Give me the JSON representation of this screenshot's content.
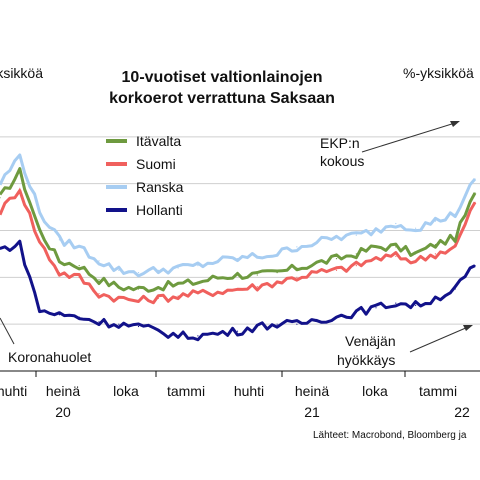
{
  "chart_data": {
    "type": "line",
    "title_lines": [
      "10-vuotiset valtionlainojen",
      "korkoerot verrattuna Saksaan"
    ],
    "unit_left": "%-yksikköä",
    "unit_right": "%-yksikköä",
    "x_tick_labels": [
      "huhti",
      "heinä",
      "loka",
      "tammi",
      "huhti",
      "heinä",
      "loka",
      "tammi"
    ],
    "x_year_labels": [
      "20",
      "21",
      "22"
    ],
    "ylim": [
      0.0,
      1.2
    ],
    "gridlines_y": [
      0.2,
      0.4,
      0.6,
      0.8,
      1.0
    ],
    "x": [
      "2020-03",
      "2020-04",
      "2020-05",
      "2020-06",
      "2020-07",
      "2020-08",
      "2020-09",
      "2020-10",
      "2020-11",
      "2020-12",
      "2021-01",
      "2021-02",
      "2021-03",
      "2021-04",
      "2021-05",
      "2021-06",
      "2021-07",
      "2021-08",
      "2021-09",
      "2021-10",
      "2021-11",
      "2021-12",
      "2022-01",
      "2022-02",
      "2022-03"
    ],
    "series": [
      {
        "name": "Itävalta",
        "color": "#6e9a3f",
        "values": [
          0.74,
          0.85,
          0.6,
          0.47,
          0.45,
          0.39,
          0.36,
          0.35,
          0.36,
          0.37,
          0.38,
          0.4,
          0.41,
          0.41,
          0.42,
          0.44,
          0.46,
          0.48,
          0.5,
          0.53,
          0.53,
          0.5,
          0.54,
          0.57,
          0.76
        ]
      },
      {
        "name": "Suomi",
        "color": "#f0605d",
        "values": [
          0.68,
          0.78,
          0.55,
          0.42,
          0.4,
          0.33,
          0.31,
          0.3,
          0.31,
          0.32,
          0.33,
          0.34,
          0.35,
          0.36,
          0.38,
          0.4,
          0.42,
          0.43,
          0.45,
          0.48,
          0.49,
          0.47,
          0.5,
          0.53,
          0.72
        ]
      },
      {
        "name": "Ranska",
        "color": "#a7cdf2",
        "values": [
          0.8,
          0.92,
          0.68,
          0.56,
          0.53,
          0.47,
          0.43,
          0.42,
          0.43,
          0.44,
          0.45,
          0.47,
          0.48,
          0.49,
          0.5,
          0.53,
          0.55,
          0.57,
          0.58,
          0.6,
          0.63,
          0.61,
          0.64,
          0.67,
          0.82
        ]
      },
      {
        "name": "Hollanti",
        "color": "#12128a",
        "values": [
          0.52,
          0.54,
          0.26,
          0.24,
          0.23,
          0.21,
          0.2,
          0.19,
          0.17,
          0.15,
          0.15,
          0.16,
          0.17,
          0.19,
          0.2,
          0.2,
          0.22,
          0.23,
          0.25,
          0.27,
          0.29,
          0.28,
          0.31,
          0.35,
          0.45
        ]
      }
    ],
    "annotations": {
      "ekp_lines": [
        "EKP:n",
        "kokous"
      ],
      "koronahuolet": "Koronahuolet",
      "venaja_lines": [
        "Venäjän",
        "hyökkäys"
      ]
    },
    "source": "Lähteet: Macrobond, Bloomberg ja",
    "grid": true,
    "legend_placement": "top-left"
  }
}
